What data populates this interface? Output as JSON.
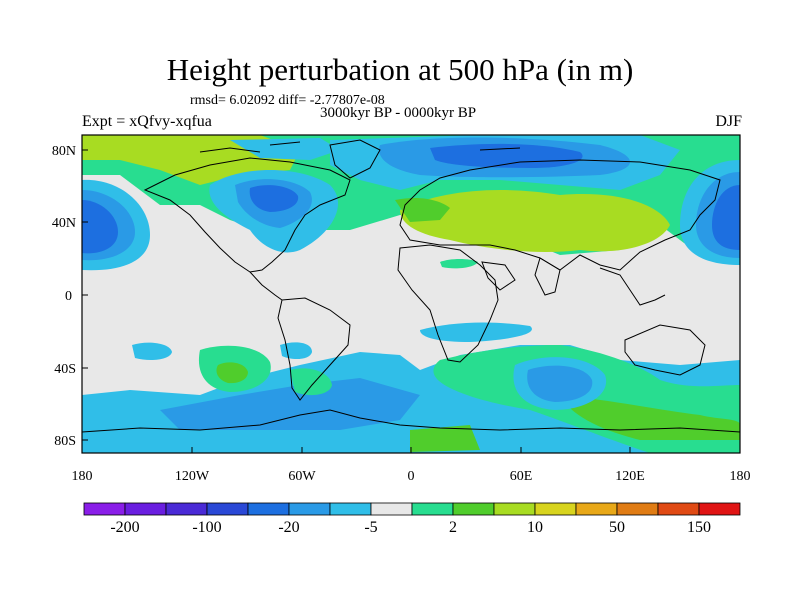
{
  "header": {
    "title": "Height perturbation at 500 hPa (in m)",
    "stats": "rmsd= 6.02092 diff= -2.77807e-08",
    "period": "3000kyr BP - 0000kyr BP",
    "experiment": "Expt = xQfvy-xqfua",
    "season": "DJF"
  },
  "map": {
    "lat_labels": [
      "80N",
      "40N",
      "0",
      "40S",
      "80S"
    ],
    "lon_labels": [
      "180",
      "120W",
      "60W",
      "0",
      "60E",
      "120E",
      "180"
    ]
  },
  "colorbar": {
    "colors": [
      "#8a1ee8",
      "#6a1ee0",
      "#4a2ad6",
      "#2a48d6",
      "#1d6fe0",
      "#2a9ae6",
      "#30bee8",
      "#e8e8e8",
      "#28dd90",
      "#50cd2c",
      "#a8dc22",
      "#d8d41e",
      "#e8a818",
      "#e07c14",
      "#e04a14",
      "#e01414"
    ],
    "labels": [
      "-200",
      "-100",
      "-20",
      "-5",
      "2",
      "10",
      "50",
      "150"
    ]
  },
  "colors": {
    "land_background": "#e8e8e8",
    "neutral": "#e8e8e8"
  }
}
